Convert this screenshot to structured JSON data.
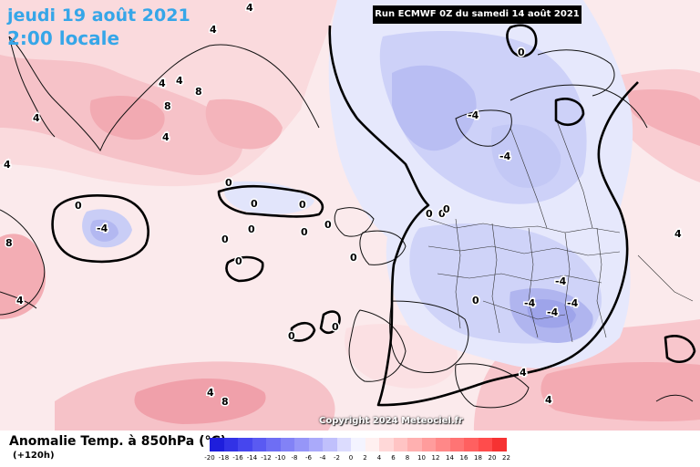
{
  "header": {
    "date_label": "jeudi 19 août 2021",
    "time_label": "2:00 locale",
    "run_label": "Run ECMWF 0Z du samedi 14 août 2021"
  },
  "footer": {
    "variable_title": "Anomalie Temp. à 850hPa (°C)",
    "lead_time": "(+120h)",
    "copyright": "Copyright 2024 Meteociel.fr"
  },
  "legend": {
    "ticks": [
      "-20",
      "-18",
      "-16",
      "-14",
      "-12",
      "-10",
      "-8",
      "-6",
      "-4",
      "-2",
      "0",
      "2",
      "4",
      "6",
      "8",
      "10",
      "12",
      "14",
      "16",
      "18",
      "20",
      "22"
    ],
    "colors": [
      "#1e1edc",
      "#3232e6",
      "#4646ee",
      "#5a5af2",
      "#6e6ef4",
      "#8282f6",
      "#9696f8",
      "#aaaafa",
      "#c0c0fc",
      "#dcdcfe",
      "#f4f4ff",
      "#fff0f0",
      "#ffd8d8",
      "#ffc4c4",
      "#ffb0b0",
      "#ff9c9c",
      "#ff8888",
      "#ff7474",
      "#ff6060",
      "#ff4c4c",
      "#f63232"
    ]
  },
  "map": {
    "colors": {
      "ocean_warm_light": "#fde6e8",
      "ocean_warm": "#f9c8cc",
      "warm_strong": "#f4a6ad",
      "cool_light": "#e6e8fc",
      "cool": "#c9cdf6",
      "cool_strong": "#aeb3ef",
      "coast": "#111111",
      "border": "#222222",
      "zero_contour": "#000000"
    },
    "contour_labels": [
      "-4",
      "-4",
      "-4",
      "-4",
      "-4",
      "-4",
      "-4",
      "0",
      "0",
      "0",
      "0",
      "0",
      "0",
      "0",
      "0",
      "0",
      "0",
      "0",
      "0",
      "0",
      "0",
      "0",
      "0",
      "0",
      "4",
      "4",
      "4",
      "4",
      "4",
      "4",
      "4",
      "4",
      "4",
      "4",
      "4",
      "4",
      "8",
      "8",
      "8",
      "8"
    ]
  }
}
